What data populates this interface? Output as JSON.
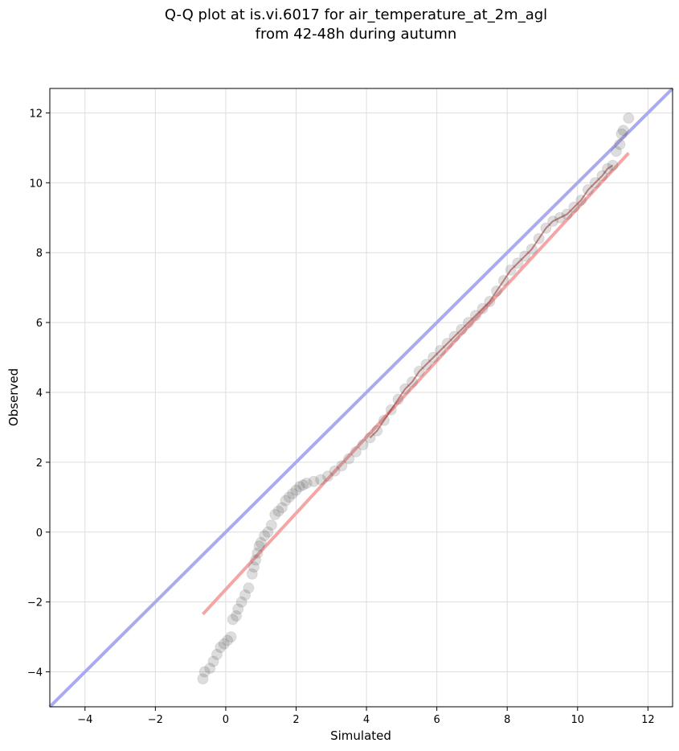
{
  "chart_data": {
    "type": "scatter",
    "title_line1": "Q-Q plot at is.vi.6017 for air_temperature_at_2m_agl",
    "title_line2": "from 42-48h during autumn",
    "xlabel": "Simulated",
    "ylabel": "Observed",
    "xlim": [
      -5,
      12.7
    ],
    "ylim": [
      -5,
      12.7
    ],
    "xticks": [
      -4,
      -2,
      0,
      2,
      4,
      6,
      8,
      10,
      12
    ],
    "yticks": [
      -4,
      -2,
      0,
      2,
      4,
      6,
      8,
      10,
      12
    ],
    "xtick_labels": [
      "−4",
      "−2",
      "0",
      "2",
      "4",
      "6",
      "8",
      "10",
      "12"
    ],
    "ytick_labels": [
      "−4",
      "−2",
      "0",
      "2",
      "4",
      "6",
      "8",
      "10",
      "12"
    ],
    "grid": true,
    "identity_line": {
      "color": "#aaaaee",
      "from": [
        -5,
        -5
      ],
      "to": [
        12.7,
        12.7
      ]
    },
    "fit_line": {
      "color": "#f4a6a6",
      "from": [
        -0.65,
        -2.35
      ],
      "to": [
        11.45,
        10.85
      ]
    },
    "point_color": "#555555",
    "series": [
      {
        "values_xy": [
          [
            -0.65,
            -4.2
          ],
          [
            -0.6,
            -4.0
          ],
          [
            -0.45,
            -3.9
          ],
          [
            -0.35,
            -3.7
          ],
          [
            -0.25,
            -3.5
          ],
          [
            -0.15,
            -3.3
          ],
          [
            -0.05,
            -3.2
          ],
          [
            0.05,
            -3.1
          ],
          [
            0.15,
            -3.0
          ],
          [
            0.2,
            -2.5
          ],
          [
            0.3,
            -2.4
          ],
          [
            0.35,
            -2.2
          ],
          [
            0.45,
            -2.0
          ],
          [
            0.55,
            -1.8
          ],
          [
            0.65,
            -1.6
          ],
          [
            0.75,
            -1.2
          ],
          [
            0.8,
            -1.0
          ],
          [
            0.85,
            -0.8
          ],
          [
            0.9,
            -0.6
          ],
          [
            0.95,
            -0.4
          ],
          [
            1.0,
            -0.3
          ],
          [
            1.1,
            -0.1
          ],
          [
            1.2,
            0.0
          ],
          [
            1.3,
            0.2
          ],
          [
            1.4,
            0.5
          ],
          [
            1.5,
            0.6
          ],
          [
            1.6,
            0.7
          ],
          [
            1.7,
            0.9
          ],
          [
            1.8,
            1.0
          ],
          [
            1.9,
            1.1
          ],
          [
            2.0,
            1.2
          ],
          [
            2.1,
            1.3
          ],
          [
            2.2,
            1.35
          ],
          [
            2.3,
            1.4
          ],
          [
            2.5,
            1.45
          ],
          [
            2.7,
            1.5
          ],
          [
            2.9,
            1.6
          ],
          [
            3.1,
            1.75
          ],
          [
            3.3,
            1.9
          ],
          [
            3.5,
            2.1
          ],
          [
            3.7,
            2.3
          ],
          [
            3.9,
            2.5
          ],
          [
            4.1,
            2.7
          ],
          [
            4.3,
            2.9
          ],
          [
            4.5,
            3.2
          ],
          [
            4.7,
            3.5
          ],
          [
            4.9,
            3.8
          ],
          [
            5.1,
            4.1
          ],
          [
            5.3,
            4.3
          ],
          [
            5.5,
            4.6
          ],
          [
            5.7,
            4.8
          ],
          [
            5.9,
            5.0
          ],
          [
            6.1,
            5.2
          ],
          [
            6.3,
            5.4
          ],
          [
            6.5,
            5.6
          ],
          [
            6.7,
            5.8
          ],
          [
            6.9,
            6.0
          ],
          [
            7.1,
            6.2
          ],
          [
            7.3,
            6.4
          ],
          [
            7.5,
            6.6
          ],
          [
            7.7,
            6.9
          ],
          [
            7.9,
            7.2
          ],
          [
            8.1,
            7.5
          ],
          [
            8.3,
            7.7
          ],
          [
            8.5,
            7.9
          ],
          [
            8.7,
            8.1
          ],
          [
            8.9,
            8.4
          ],
          [
            9.1,
            8.7
          ],
          [
            9.3,
            8.9
          ],
          [
            9.5,
            9.0
          ],
          [
            9.7,
            9.1
          ],
          [
            9.9,
            9.3
          ],
          [
            10.1,
            9.5
          ],
          [
            10.3,
            9.8
          ],
          [
            10.5,
            10.0
          ],
          [
            10.7,
            10.2
          ],
          [
            10.85,
            10.4
          ],
          [
            11.0,
            10.5
          ],
          [
            11.1,
            10.9
          ],
          [
            11.2,
            11.1
          ],
          [
            11.25,
            11.4
          ],
          [
            11.3,
            11.5
          ],
          [
            11.45,
            11.85
          ]
        ]
      }
    ]
  }
}
